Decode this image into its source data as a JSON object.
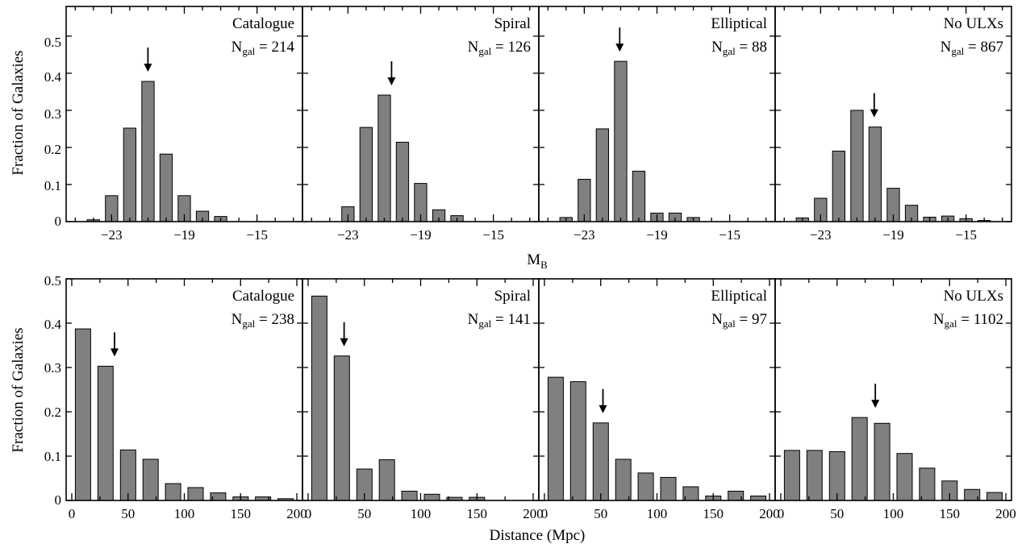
{
  "figure": {
    "row_top": {
      "ylabel": "Fraction of Galaxies",
      "xlabel": "M",
      "xlabel_sub": "B",
      "yticks": [
        "0",
        "0.1",
        "0.2",
        "0.3",
        "0.4",
        "0.5"
      ],
      "xticks": [
        "−23",
        "−19",
        "−15"
      ]
    },
    "row_bottom": {
      "ylabel": "Fraction of Galaxies",
      "xlabel": "Distance (Mpc)",
      "yticks": [
        "0",
        "0.1",
        "0.2",
        "0.3",
        "0.4",
        "0.5"
      ],
      "xticks": [
        "0",
        "50",
        "100",
        "150",
        "200"
      ]
    }
  },
  "chart_data": [
    {
      "type": "bar",
      "panel_label": "Catalogue",
      "n_prefix": "N",
      "n_sub": "gal",
      "n_value": "= 214",
      "xlabel": "M_B",
      "ylabel": "Fraction of Galaxies",
      "xlim": [
        -25.5,
        -12.5
      ],
      "ylim": [
        0,
        0.58
      ],
      "bin_width": 1,
      "x": [
        -24,
        -23,
        -22,
        -21,
        -20,
        -19,
        -18,
        -17,
        -16,
        -15,
        -14,
        -13
      ],
      "values": [
        0.005,
        0.07,
        0.252,
        0.378,
        0.182,
        0.07,
        0.028,
        0.014,
        0.0,
        0.0,
        0.0,
        0.0
      ],
      "marker_x": -21
    },
    {
      "type": "bar",
      "panel_label": "Spiral",
      "n_prefix": "N",
      "n_sub": "gal",
      "n_value": "= 126",
      "xlabel": "M_B",
      "ylabel": "Fraction of Galaxies",
      "xlim": [
        -25.5,
        -12.5
      ],
      "ylim": [
        0,
        0.58
      ],
      "bin_width": 1,
      "x": [
        -24,
        -23,
        -22,
        -21,
        -20,
        -19,
        -18,
        -17,
        -16,
        -15,
        -14,
        -13
      ],
      "values": [
        0.0,
        0.04,
        0.254,
        0.341,
        0.214,
        0.103,
        0.032,
        0.016,
        0.0,
        0.0,
        0.0,
        0.0
      ],
      "marker_x": -20.6
    },
    {
      "type": "bar",
      "panel_label": "Elliptical",
      "n_prefix": "N",
      "n_sub": "gal",
      "n_value": "= 88",
      "xlabel": "M_B",
      "ylabel": "Fraction of Galaxies",
      "xlim": [
        -25.5,
        -12.5
      ],
      "ylim": [
        0,
        0.58
      ],
      "bin_width": 1,
      "x": [
        -24,
        -23,
        -22,
        -21,
        -20,
        -19,
        -18,
        -17,
        -16,
        -15,
        -14,
        -13
      ],
      "values": [
        0.011,
        0.114,
        0.25,
        0.432,
        0.136,
        0.023,
        0.023,
        0.011,
        0.0,
        0.0,
        0.0,
        0.0
      ],
      "marker_x": -21.05
    },
    {
      "type": "bar",
      "panel_label": "No ULXs",
      "n_prefix": "N",
      "n_sub": "gal",
      "n_value": "= 867",
      "xlabel": "M_B",
      "ylabel": "Fraction of Galaxies",
      "xlim": [
        -25.5,
        -12.5
      ],
      "ylim": [
        0,
        0.58
      ],
      "bin_width": 1,
      "x": [
        -24,
        -23,
        -22,
        -21,
        -20,
        -19,
        -18,
        -17,
        -16,
        -15,
        -14,
        -13
      ],
      "values": [
        0.01,
        0.063,
        0.19,
        0.3,
        0.255,
        0.09,
        0.044,
        0.012,
        0.015,
        0.008,
        0.003,
        0.0
      ],
      "marker_x": -20.05
    },
    {
      "type": "bar",
      "panel_label": "Catalogue",
      "n_prefix": "N",
      "n_sub": "gal",
      "n_value": "= 238",
      "xlabel": "Distance (Mpc)",
      "ylabel": "Fraction of Galaxies",
      "xlim": [
        -5,
        205
      ],
      "ylim": [
        0,
        0.5
      ],
      "bin_width": 20,
      "x": [
        10,
        30,
        50,
        70,
        90,
        110,
        130,
        150,
        170,
        190
      ],
      "values": [
        0.387,
        0.303,
        0.114,
        0.093,
        0.038,
        0.029,
        0.017,
        0.008,
        0.008,
        0.004
      ],
      "marker_x": 38
    },
    {
      "type": "bar",
      "panel_label": "Spiral",
      "n_prefix": "N",
      "n_sub": "gal",
      "n_value": "= 141",
      "xlabel": "Distance (Mpc)",
      "ylabel": "Fraction of Galaxies",
      "xlim": [
        -5,
        205
      ],
      "ylim": [
        0,
        0.5
      ],
      "bin_width": 20,
      "x": [
        10,
        30,
        50,
        70,
        90,
        110,
        130,
        150,
        170,
        190
      ],
      "values": [
        0.461,
        0.326,
        0.071,
        0.092,
        0.021,
        0.014,
        0.007,
        0.007,
        0.0,
        0.0
      ],
      "marker_x": 32
    },
    {
      "type": "bar",
      "panel_label": "Elliptical",
      "n_prefix": "N",
      "n_sub": "gal",
      "n_value": "= 97",
      "xlabel": "Distance (Mpc)",
      "ylabel": "Fraction of Galaxies",
      "xlim": [
        -5,
        205
      ],
      "ylim": [
        0,
        0.5
      ],
      "bin_width": 20,
      "x": [
        10,
        30,
        50,
        70,
        90,
        110,
        130,
        150,
        170,
        190
      ],
      "values": [
        0.278,
        0.268,
        0.175,
        0.093,
        0.062,
        0.052,
        0.031,
        0.01,
        0.021,
        0.01
      ],
      "marker_x": 52
    },
    {
      "type": "bar",
      "panel_label": "No ULXs",
      "n_prefix": "N",
      "n_sub": "gal",
      "n_value": "= 1102",
      "xlabel": "Distance (Mpc)",
      "ylabel": "Fraction of Galaxies",
      "xlim": [
        -5,
        205
      ],
      "ylim": [
        0,
        0.5
      ],
      "bin_width": 20,
      "x": [
        10,
        30,
        50,
        70,
        90,
        110,
        130,
        150,
        170,
        190
      ],
      "values": [
        0.113,
        0.113,
        0.11,
        0.187,
        0.174,
        0.106,
        0.073,
        0.044,
        0.025,
        0.018
      ],
      "marker_x": 84
    }
  ]
}
